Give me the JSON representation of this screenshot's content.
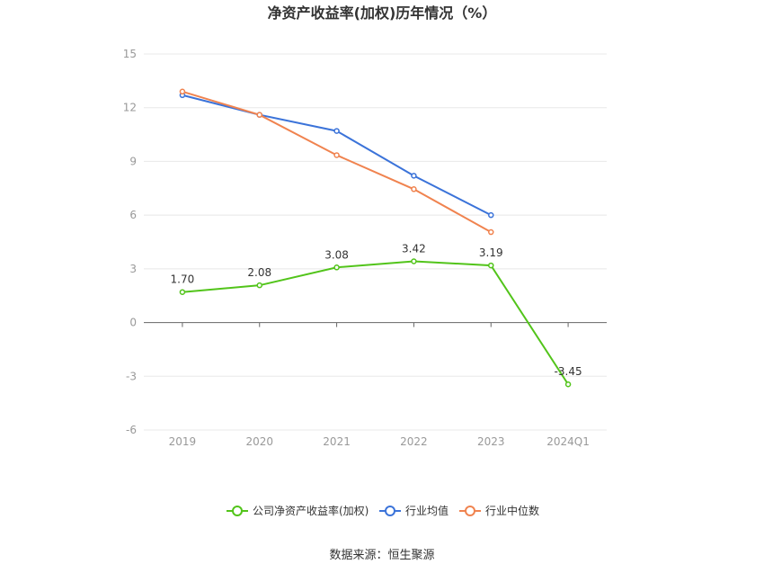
{
  "chart_data": {
    "type": "line",
    "title": "净资产收益率(加权)历年情况（%）",
    "categories": [
      "2019",
      "2020",
      "2021",
      "2022",
      "2023",
      "2024Q1"
    ],
    "ylim": [
      -6,
      15
    ],
    "yticks": [
      "15",
      "12",
      "9",
      "6",
      "3",
      "0",
      "-3",
      "-6"
    ],
    "grid": true,
    "legend_position": "bottom",
    "series": [
      {
        "name": "公司净资产收益率(加权)",
        "color": "#52c41a",
        "values": [
          1.7,
          2.08,
          3.08,
          3.42,
          3.19,
          -3.45
        ],
        "labels": [
          "1.70",
          "2.08",
          "3.08",
          "3.42",
          "3.19",
          "-3.45"
        ]
      },
      {
        "name": "行业均值",
        "color": "#3b73d9",
        "values": [
          12.7,
          11.6,
          10.7,
          8.2,
          6.0,
          null
        ],
        "labels": []
      },
      {
        "name": "行业中位数",
        "color": "#f0834f",
        "values": [
          12.9,
          11.6,
          9.35,
          7.45,
          5.05,
          null
        ],
        "labels": []
      }
    ],
    "source": "数据来源：恒生聚源"
  }
}
